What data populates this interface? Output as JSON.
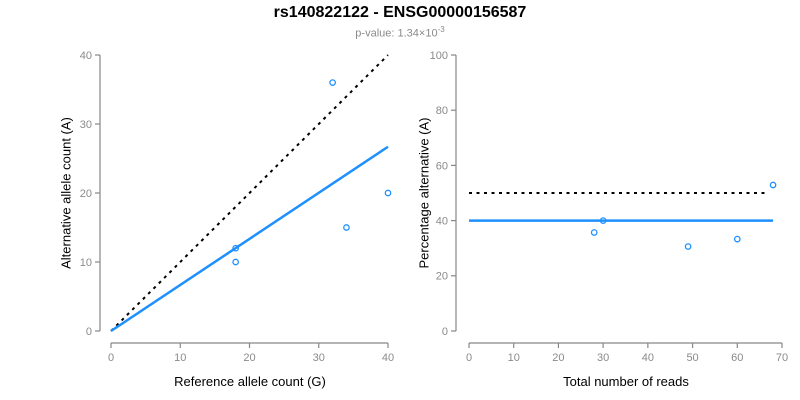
{
  "page": {
    "title": "rs140822122 - ENSG00000156587",
    "subtitle_prefix": "p-value: 1.34×10",
    "subtitle_exponent": "-3"
  },
  "colors": {
    "accent_blue": "#1E90FF",
    "line_black": "#000000",
    "axis_gray": "#878787",
    "tick_label_gray": "#8a8a8a",
    "title_black": "#000000",
    "subtitle_gray": "#8a8a8a"
  },
  "chart_data": [
    {
      "type": "scatter",
      "name": "allele-counts",
      "xlabel": "Reference allele count (G)",
      "ylabel": "Alternative allele count (A)",
      "xlim": [
        0,
        40
      ],
      "ylim": [
        0,
        40
      ],
      "xticks": [
        0,
        10,
        20,
        30,
        40
      ],
      "yticks": [
        0,
        10,
        20,
        30,
        40
      ],
      "grid": false,
      "points": [
        [
          18,
          10
        ],
        [
          18,
          12
        ],
        [
          32,
          36
        ],
        [
          34,
          15
        ],
        [
          40,
          20
        ]
      ],
      "point_style": {
        "shape": "open-circle",
        "color": "#1E90FF"
      },
      "lines": [
        {
          "name": "identity-line",
          "style": "dotted",
          "color": "#000000",
          "width": 2,
          "from": [
            0,
            0
          ],
          "to": [
            40,
            40
          ]
        },
        {
          "name": "fitted-line",
          "style": "solid",
          "color": "#1E90FF",
          "width": 2.5,
          "from": [
            0,
            0
          ],
          "to": [
            40,
            26.7
          ]
        }
      ]
    },
    {
      "type": "scatter",
      "name": "percentage-vs-reads",
      "xlabel": "Total number of reads",
      "ylabel": "Percentage alternative (A)",
      "xlim": [
        0,
        70
      ],
      "ylim": [
        0,
        100
      ],
      "xticks": [
        0,
        10,
        20,
        30,
        40,
        50,
        60,
        70
      ],
      "yticks": [
        0,
        20,
        40,
        60,
        80,
        100
      ],
      "grid": false,
      "points": [
        [
          28,
          35.7
        ],
        [
          30,
          40
        ],
        [
          49,
          30.6
        ],
        [
          60,
          33.3
        ],
        [
          68,
          52.9
        ]
      ],
      "point_style": {
        "shape": "open-circle",
        "color": "#1E90FF"
      },
      "lines": [
        {
          "name": "null-50pct-line",
          "style": "dotted",
          "color": "#000000",
          "width": 2,
          "from": [
            0,
            50
          ],
          "to": [
            67,
            50
          ]
        },
        {
          "name": "estimated-40pct-line",
          "style": "solid",
          "color": "#1E90FF",
          "width": 2.5,
          "from": [
            0,
            40
          ],
          "to": [
            68,
            40
          ]
        }
      ]
    }
  ]
}
